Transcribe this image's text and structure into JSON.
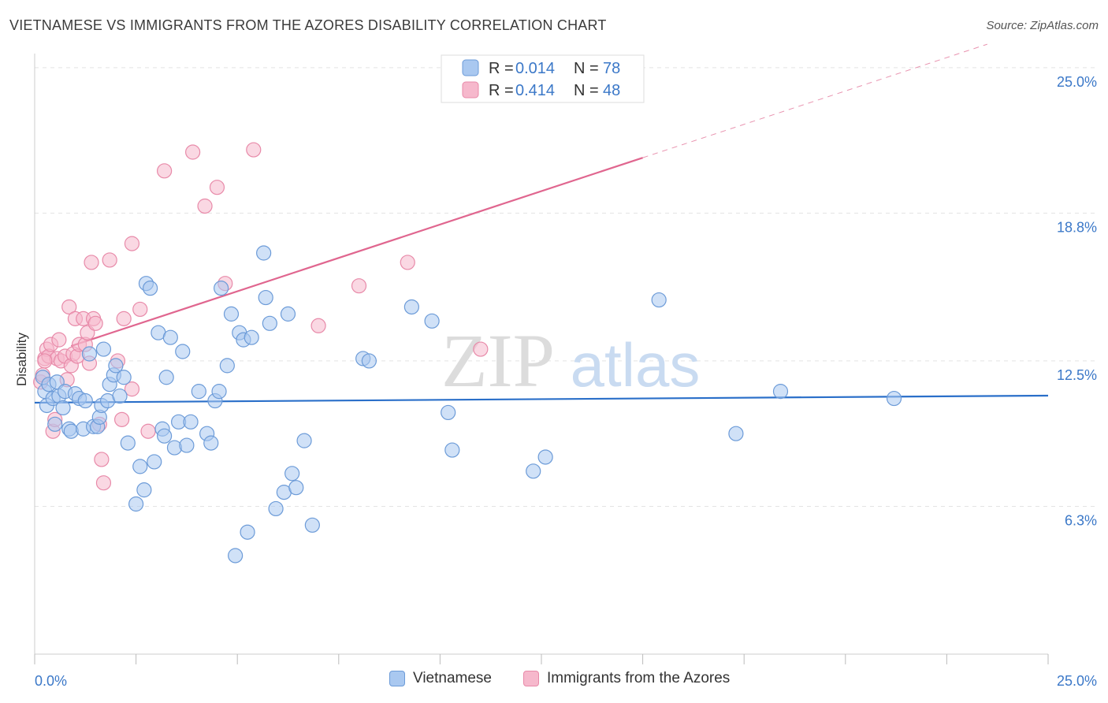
{
  "title": "VIETNAMESE VS IMMIGRANTS FROM THE AZORES DISABILITY CORRELATION CHART",
  "source": "Source: ZipAtlas.com",
  "watermark": {
    "zip": "ZIP",
    "atlas": "atlas"
  },
  "colors": {
    "blue_fill": "#a9c8f0",
    "blue_stroke": "#6c9bd8",
    "blue_line": "#2a6fc9",
    "pink_fill": "#f6b8cc",
    "pink_stroke": "#e88aa9",
    "pink_line": "#e0668f",
    "label_blue": "#3b78c8",
    "grid": "#e3e3e3"
  },
  "chart_data": {
    "type": "scatter",
    "title": "VIETNAMESE VS IMMIGRANTS FROM THE AZORES DISABILITY CORRELATION CHART",
    "xlabel": "",
    "ylabel": "Disability",
    "xlim": [
      0,
      25
    ],
    "ylim": [
      0,
      25.6
    ],
    "x_tick_labels": {
      "min": "0.0%",
      "max": "25.0%"
    },
    "y_ticks": [
      {
        "value": 6.3,
        "label": "6.3%"
      },
      {
        "value": 12.5,
        "label": "12.5%"
      },
      {
        "value": 18.8,
        "label": "18.8%"
      },
      {
        "value": 25.0,
        "label": "25.0%"
      }
    ],
    "legend_top": [
      {
        "series": "Vietnamese",
        "r_label": "R =",
        "r_value": "0.014",
        "n_label": "N =",
        "n_value": "78"
      },
      {
        "series": "Immigrants from the Azores",
        "r_label": "R =",
        "r_value": "0.414",
        "n_label": "N =",
        "n_value": "48"
      }
    ],
    "series": [
      {
        "name": "Vietnamese",
        "color": "blue",
        "trend": {
          "x0": 0,
          "y0": 10.72,
          "x1": 25,
          "y1": 11.02,
          "solid_to": 25
        },
        "points": [
          [
            0.2,
            11.8
          ],
          [
            0.25,
            11.2
          ],
          [
            0.3,
            10.6
          ],
          [
            0.35,
            11.5
          ],
          [
            0.45,
            10.9
          ],
          [
            0.5,
            9.8
          ],
          [
            0.55,
            11.6
          ],
          [
            0.6,
            11.0
          ],
          [
            0.7,
            10.5
          ],
          [
            0.75,
            11.2
          ],
          [
            0.85,
            9.6
          ],
          [
            0.9,
            9.5
          ],
          [
            1.0,
            11.1
          ],
          [
            1.1,
            10.9
          ],
          [
            1.2,
            9.6
          ],
          [
            1.25,
            10.8
          ],
          [
            1.35,
            12.8
          ],
          [
            1.45,
            9.7
          ],
          [
            1.55,
            9.7
          ],
          [
            1.6,
            10.1
          ],
          [
            1.65,
            10.6
          ],
          [
            1.7,
            13.0
          ],
          [
            1.8,
            10.8
          ],
          [
            1.85,
            11.5
          ],
          [
            1.95,
            11.9
          ],
          [
            2.0,
            12.3
          ],
          [
            2.1,
            11.0
          ],
          [
            2.2,
            11.8
          ],
          [
            2.3,
            9.0
          ],
          [
            2.5,
            6.4
          ],
          [
            2.6,
            8.0
          ],
          [
            2.7,
            7.0
          ],
          [
            2.75,
            15.8
          ],
          [
            2.85,
            15.6
          ],
          [
            2.95,
            8.2
          ],
          [
            3.05,
            13.7
          ],
          [
            3.15,
            9.6
          ],
          [
            3.2,
            9.3
          ],
          [
            3.25,
            11.8
          ],
          [
            3.35,
            13.5
          ],
          [
            3.45,
            8.8
          ],
          [
            3.55,
            9.9
          ],
          [
            3.65,
            12.9
          ],
          [
            3.75,
            8.9
          ],
          [
            3.85,
            9.9
          ],
          [
            4.05,
            11.2
          ],
          [
            4.25,
            9.4
          ],
          [
            4.35,
            9.0
          ],
          [
            4.45,
            10.8
          ],
          [
            4.55,
            11.2
          ],
          [
            4.6,
            15.6
          ],
          [
            4.75,
            12.3
          ],
          [
            4.85,
            14.5
          ],
          [
            4.95,
            4.2
          ],
          [
            5.05,
            13.7
          ],
          [
            5.15,
            13.4
          ],
          [
            5.25,
            5.2
          ],
          [
            5.35,
            13.5
          ],
          [
            5.65,
            17.1
          ],
          [
            5.7,
            15.2
          ],
          [
            5.8,
            14.1
          ],
          [
            5.95,
            6.2
          ],
          [
            6.15,
            6.9
          ],
          [
            6.25,
            14.5
          ],
          [
            6.35,
            7.7
          ],
          [
            6.45,
            7.1
          ],
          [
            6.65,
            9.1
          ],
          [
            6.85,
            5.5
          ],
          [
            8.1,
            12.6
          ],
          [
            8.25,
            12.5
          ],
          [
            9.3,
            14.8
          ],
          [
            9.8,
            14.2
          ],
          [
            10.2,
            10.3
          ],
          [
            10.3,
            8.7
          ],
          [
            12.3,
            7.8
          ],
          [
            12.6,
            8.4
          ],
          [
            15.4,
            15.1
          ],
          [
            17.3,
            9.4
          ],
          [
            18.4,
            11.2
          ],
          [
            21.2,
            10.9
          ]
        ]
      },
      {
        "name": "Immigrants from the Azores",
        "color": "pink",
        "trend": {
          "x0": 0,
          "y0": 12.62,
          "x1": 23.5,
          "y1": 26.0,
          "solid_to": 15.0
        },
        "points": [
          [
            0.15,
            11.6
          ],
          [
            0.2,
            11.9
          ],
          [
            0.25,
            12.6
          ],
          [
            0.3,
            13.0
          ],
          [
            0.35,
            12.7
          ],
          [
            0.4,
            13.2
          ],
          [
            0.45,
            9.5
          ],
          [
            0.5,
            10.0
          ],
          [
            0.55,
            12.6
          ],
          [
            0.6,
            13.4
          ],
          [
            0.65,
            12.5
          ],
          [
            0.75,
            12.7
          ],
          [
            0.8,
            11.7
          ],
          [
            0.85,
            14.8
          ],
          [
            0.9,
            12.3
          ],
          [
            0.95,
            12.8
          ],
          [
            1.0,
            14.3
          ],
          [
            1.05,
            12.7
          ],
          [
            1.1,
            13.2
          ],
          [
            1.2,
            14.3
          ],
          [
            1.25,
            13.2
          ],
          [
            1.3,
            13.7
          ],
          [
            1.35,
            12.4
          ],
          [
            1.4,
            16.7
          ],
          [
            1.45,
            14.3
          ],
          [
            1.5,
            14.1
          ],
          [
            1.6,
            9.8
          ],
          [
            1.65,
            8.3
          ],
          [
            1.7,
            7.3
          ],
          [
            1.85,
            16.8
          ],
          [
            2.05,
            12.5
          ],
          [
            2.15,
            10.0
          ],
          [
            2.2,
            14.3
          ],
          [
            2.4,
            11.3
          ],
          [
            2.4,
            17.5
          ],
          [
            2.6,
            14.7
          ],
          [
            2.8,
            9.5
          ],
          [
            3.2,
            20.6
          ],
          [
            3.9,
            21.4
          ],
          [
            4.2,
            19.1
          ],
          [
            4.5,
            19.9
          ],
          [
            4.7,
            15.8
          ],
          [
            5.4,
            21.5
          ],
          [
            7.0,
            14.0
          ],
          [
            8.0,
            15.7
          ],
          [
            9.2,
            16.7
          ],
          [
            11.0,
            13.0
          ],
          [
            0.25,
            12.5
          ]
        ]
      }
    ]
  }
}
